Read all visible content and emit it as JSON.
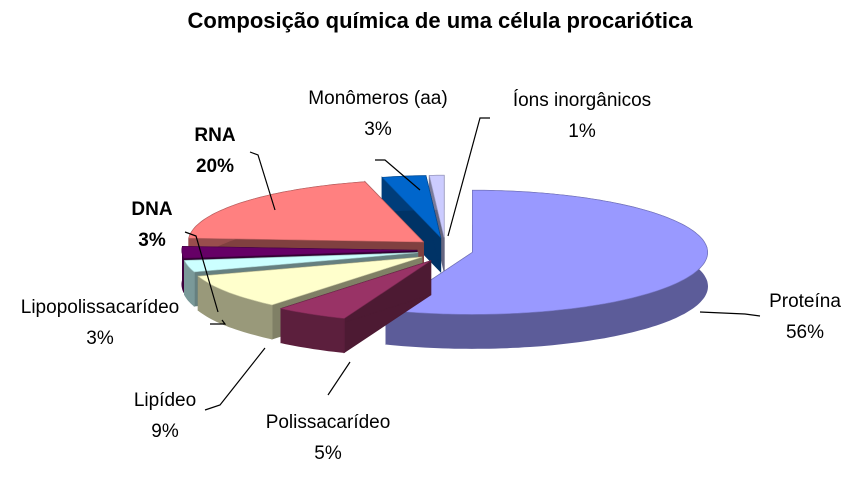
{
  "chart_data": {
    "type": "pie3d",
    "title": "Composição química de uma célula procariótica",
    "categories": [
      "Proteína",
      "Polissacarídeo",
      "Lipídeo",
      "Lipopolissacarídeo",
      "DNA",
      "RNA",
      "Monômeros (aa)",
      "Íons inorgânicos"
    ],
    "values": [
      56,
      5,
      9,
      3,
      3,
      20,
      3,
      1
    ],
    "value_labels": [
      "56%",
      "5%",
      "9%",
      "3%",
      "3%",
      "20%",
      "3%",
      "1%"
    ],
    "colors": [
      "#9999ff",
      "#993366",
      "#ffffcc",
      "#ccffff",
      "#660066",
      "#ff8080",
      "#0066cc",
      "#ccccff"
    ],
    "bold": [
      false,
      false,
      false,
      false,
      true,
      true,
      false,
      false
    ]
  }
}
